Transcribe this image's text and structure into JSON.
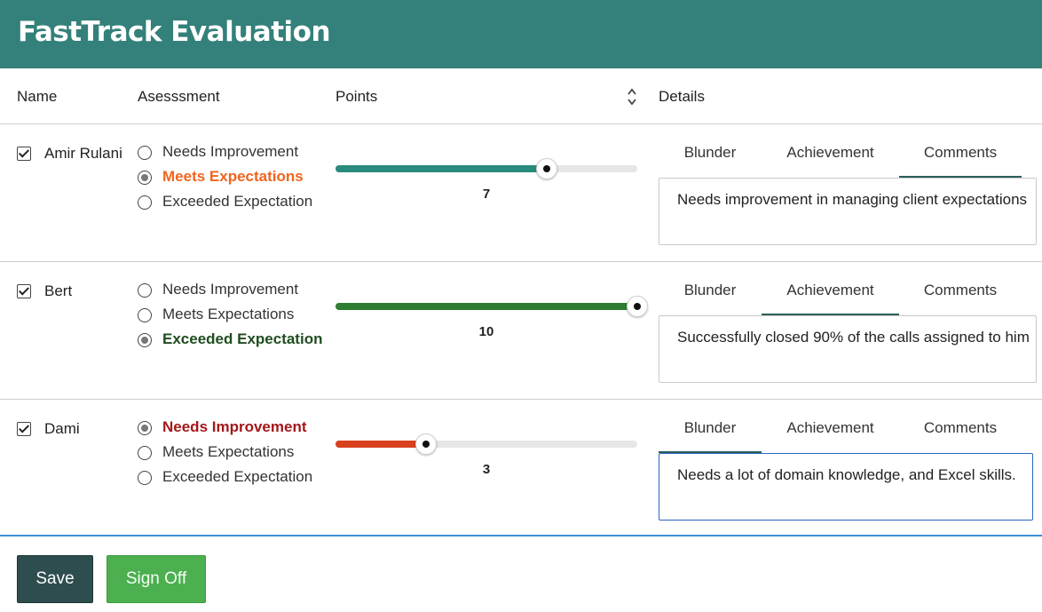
{
  "app": {
    "title": "FastTrack Evaluation"
  },
  "columns": {
    "name": "Name",
    "assessment": "Asesssment",
    "points": "Points",
    "details": "Details"
  },
  "tabs": {
    "blunder": "Blunder",
    "achievement": "Achievement",
    "comments": "Comments"
  },
  "options": [
    "Needs Improvement",
    "Meets Expectations",
    "Exceeded Expectation"
  ],
  "slider": {
    "min": 0,
    "max": 10
  },
  "rows": [
    {
      "name": "Amir Rulani",
      "checked": true,
      "assessment_index": 1,
      "selected_color": "#f0641e",
      "points": 7,
      "points_label": "7",
      "slider_color": "#2a8a7c",
      "active_tab": "comments",
      "comment": "Needs improvement in managing client expectations",
      "comment_focused": false
    },
    {
      "name": "Bert",
      "checked": true,
      "assessment_index": 2,
      "selected_color": "#1f4d1f",
      "points": 10,
      "points_label": "10",
      "slider_color": "#2e7d32",
      "active_tab": "achievement",
      "comment": "Successfully closed 90% of the calls assigned to him",
      "comment_focused": false
    },
    {
      "name": "Dami",
      "checked": true,
      "assessment_index": 0,
      "selected_color": "#a3181b",
      "points": 3,
      "points_label": "3",
      "slider_color": "#d8401e",
      "active_tab": "blunder",
      "comment": "Needs a lot of domain knowledge, and Excel skills.",
      "comment_focused": true
    }
  ],
  "buttons": {
    "save": "Save",
    "sign_off": "Sign Off"
  },
  "colors": {
    "header": "#34807a",
    "save": "#2e4d4f",
    "sign_off": "#4caf50"
  }
}
